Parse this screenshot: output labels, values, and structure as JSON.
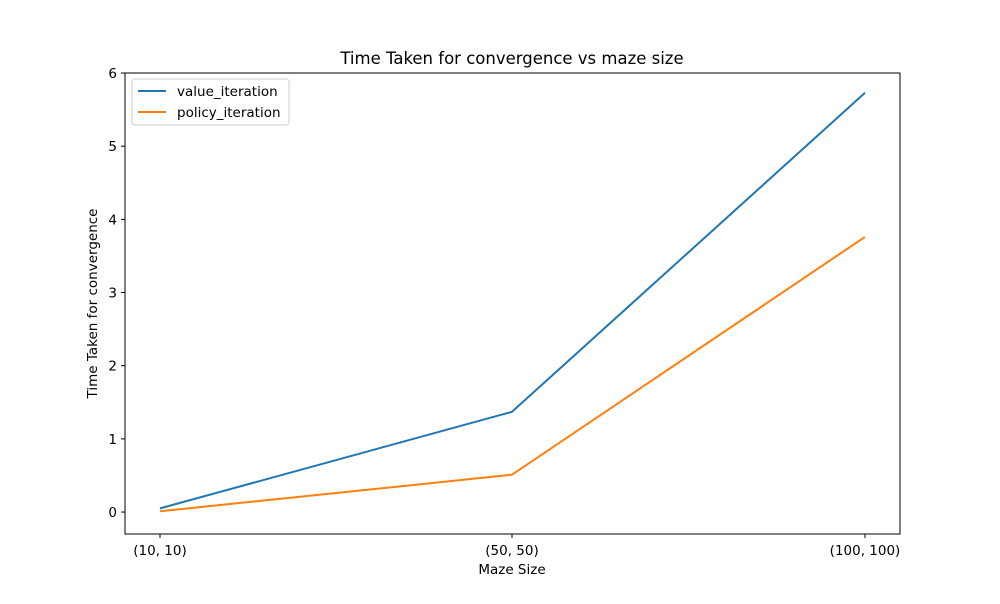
{
  "chart_data": {
    "type": "line",
    "title": "Time Taken for convergence vs maze size",
    "xlabel": "Maze Size",
    "ylabel": "Time Taken for convergence",
    "categories": [
      "(10, 10)",
      "(50, 50)",
      "(100, 100)"
    ],
    "ylim": [
      -0.3,
      6.0
    ],
    "yticks": [
      0,
      1,
      2,
      3,
      4,
      5,
      6
    ],
    "grid": false,
    "legend_position": "upper-left",
    "series": [
      {
        "name": "value_iteration",
        "color": "#1f77b4",
        "values": [
          0.05,
          1.37,
          5.73
        ]
      },
      {
        "name": "policy_iteration",
        "color": "#ff7f0e",
        "values": [
          0.01,
          0.51,
          3.76
        ]
      }
    ]
  }
}
